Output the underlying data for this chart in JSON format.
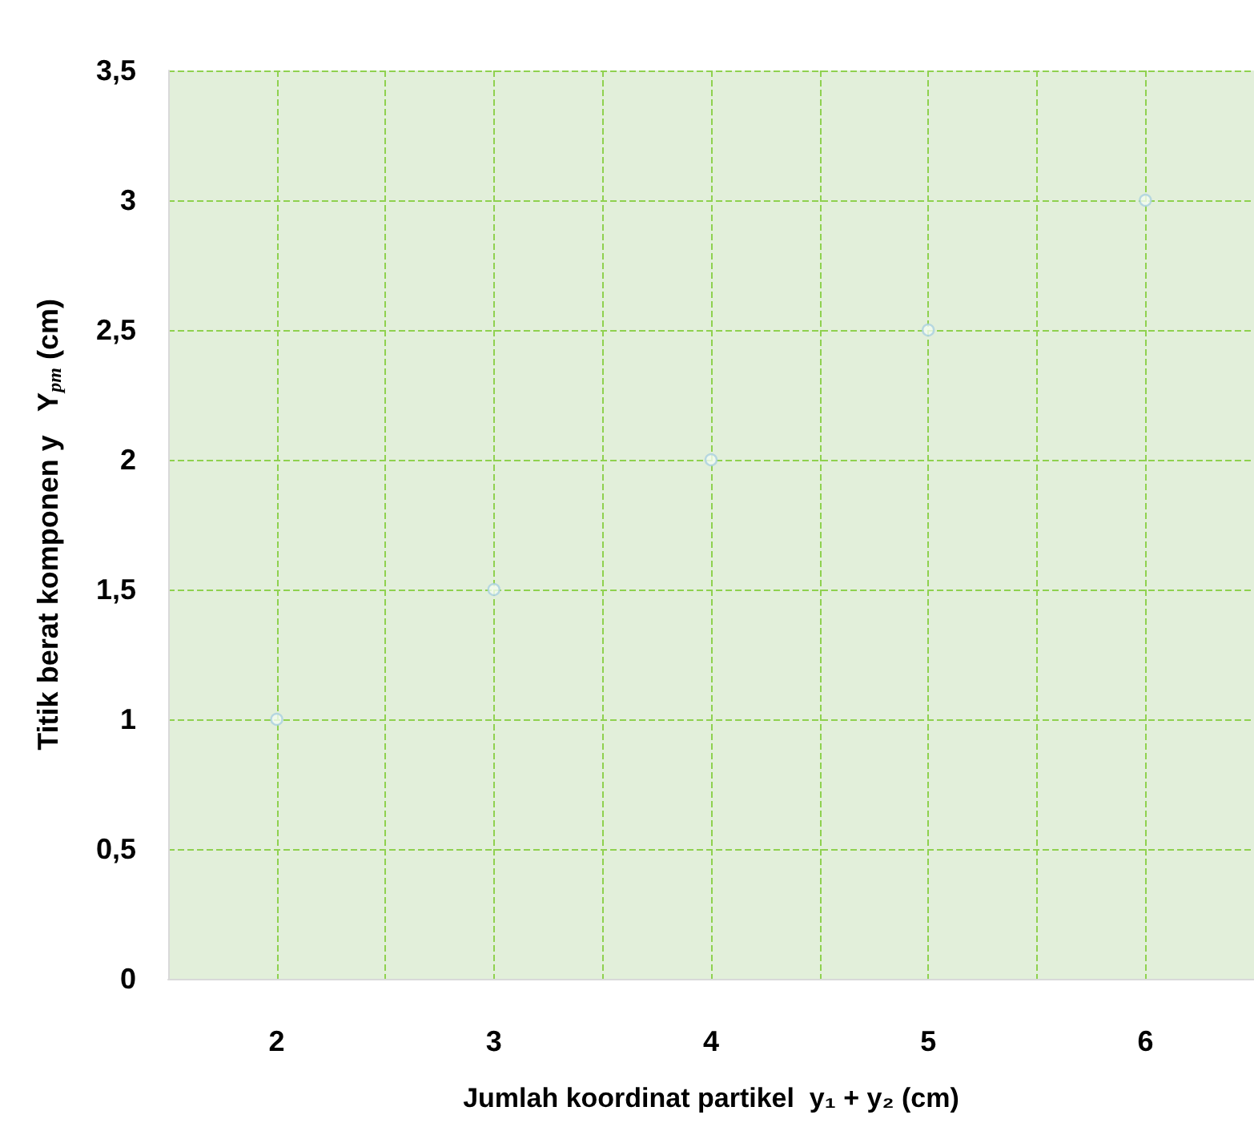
{
  "chart_data": {
    "type": "scatter",
    "xlabel": "Jumlah koordinat partikel  y₁ + y₂ (cm)",
    "ylabel": "Titik berat komponen y   Y$_{pm}$ (cm)",
    "x": [
      2,
      3,
      4,
      5,
      6
    ],
    "series": [
      {
        "color": "#a9cfe0",
        "values": [
          1,
          1.5,
          2,
          2.5,
          3
        ]
      }
    ],
    "xlim": [
      1.5,
      6.5
    ],
    "xticks": [
      2,
      3,
      4,
      5,
      6
    ],
    "ylim": [
      0,
      3.5
    ],
    "yticks": [
      0,
      {
        "value": 0.5,
        "label": "0,5"
      },
      1,
      {
        "value": 1.5,
        "label": "1,5"
      },
      2,
      {
        "value": 2.5,
        "label": "2,5"
      },
      3,
      {
        "value": 3.5,
        "label": "3,5"
      }
    ],
    "grid": true,
    "marker": "circle"
  }
}
